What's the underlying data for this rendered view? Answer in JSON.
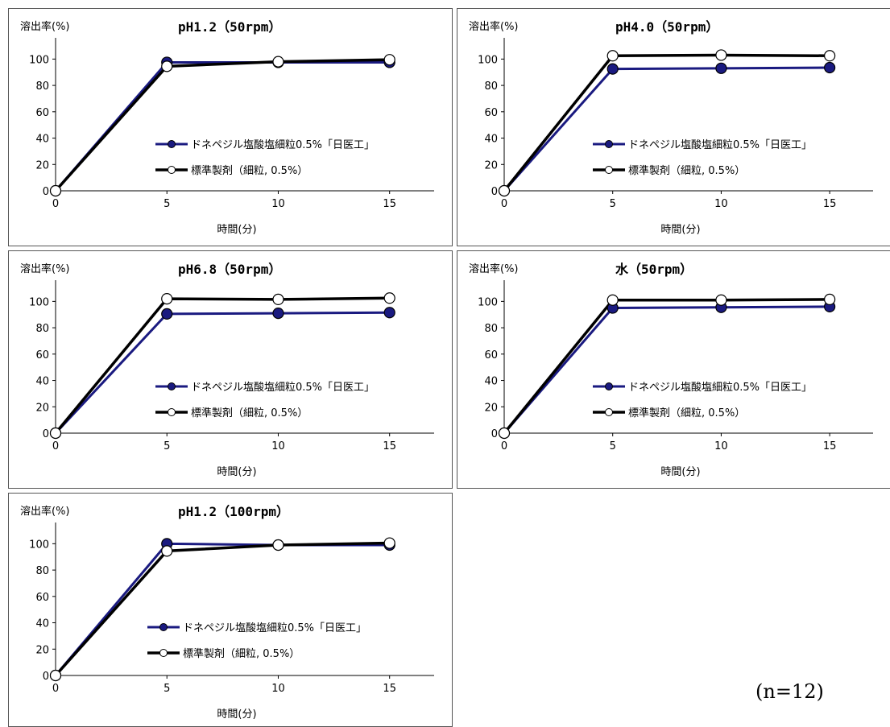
{
  "colors": {
    "test": "#1a1a80",
    "reference": "#000000"
  },
  "legend": {
    "test": "ドネペジル塩酸塩細粒0.5%「日医工」",
    "reference": "標準製剤（細粒, 0.5%）"
  },
  "note": "(n=12)",
  "chart_data": [
    {
      "type": "line",
      "title": "pH1.2（50rpm）",
      "xlabel": "時間(分)",
      "ylabel": "溶出率(%)",
      "x": [
        0,
        5,
        10,
        15
      ],
      "xlim": [
        0,
        17
      ],
      "ylim": [
        0,
        110
      ],
      "xticks": [
        "0",
        "5",
        "10",
        "15"
      ],
      "yticks": [
        "0",
        "20",
        "40",
        "60",
        "80",
        "100"
      ],
      "legend_position": "lower-right",
      "series": [
        {
          "name": "ドネペジル塩酸塩細粒0.5%「日医工」",
          "values": [
            0,
            97.5,
            97.5,
            97.5
          ]
        },
        {
          "name": "標準製剤（細粒, 0.5%）",
          "values": [
            0,
            94.5,
            98,
            99.5
          ]
        }
      ]
    },
    {
      "type": "line",
      "title": "pH4.0（50rpm）",
      "xlabel": "時間(分)",
      "ylabel": "溶出率(%)",
      "x": [
        0,
        5,
        10,
        15
      ],
      "xlim": [
        0,
        17
      ],
      "ylim": [
        0,
        110
      ],
      "xticks": [
        "0",
        "5",
        "10",
        "15"
      ],
      "yticks": [
        "0",
        "20",
        "40",
        "60",
        "80",
        "100"
      ],
      "legend_position": "lower-right",
      "series": [
        {
          "name": "ドネペジル塩酸塩細粒0.5%「日医工」",
          "values": [
            0,
            92.5,
            93,
            93.5
          ]
        },
        {
          "name": "標準製剤（細粒, 0.5%）",
          "values": [
            0,
            102.5,
            103,
            102.5
          ]
        }
      ]
    },
    {
      "type": "line",
      "title": "pH6.8（50rpm）",
      "xlabel": "時間(分)",
      "ylabel": "溶出率(%)",
      "x": [
        0,
        5,
        10,
        15
      ],
      "xlim": [
        0,
        17
      ],
      "ylim": [
        0,
        110
      ],
      "xticks": [
        "0",
        "5",
        "10",
        "15"
      ],
      "yticks": [
        "0",
        "20",
        "40",
        "60",
        "80",
        "100"
      ],
      "legend_position": "lower-right",
      "series": [
        {
          "name": "ドネペジル塩酸塩細粒0.5%「日医工」",
          "values": [
            0,
            90.5,
            91,
            91.5
          ]
        },
        {
          "name": "標準製剤（細粒, 0.5%）",
          "values": [
            0,
            102,
            101.5,
            102.5
          ]
        }
      ]
    },
    {
      "type": "line",
      "title": "水（50rpm）",
      "xlabel": "時間(分)",
      "ylabel": "溶出率(%)",
      "x": [
        0,
        5,
        10,
        15
      ],
      "xlim": [
        0,
        17
      ],
      "ylim": [
        0,
        110
      ],
      "xticks": [
        "0",
        "5",
        "10",
        "15"
      ],
      "yticks": [
        "0",
        "20",
        "40",
        "60",
        "80",
        "100"
      ],
      "legend_position": "lower-right",
      "series": [
        {
          "name": "ドネペジル塩酸塩細粒0.5%「日医工」",
          "values": [
            0,
            95,
            95.5,
            96
          ]
        },
        {
          "name": "標準製剤（細粒, 0.5%）",
          "values": [
            0,
            101,
            101,
            101.5
          ]
        }
      ]
    },
    {
      "type": "line",
      "title": "pH1.2（100rpm）",
      "xlabel": "時間(分)",
      "ylabel": "溶出率(%)",
      "x": [
        0,
        5,
        10,
        15
      ],
      "xlim": [
        0,
        17
      ],
      "ylim": [
        0,
        110
      ],
      "xticks": [
        "0",
        "5",
        "10",
        "15"
      ],
      "yticks": [
        "0",
        "20",
        "40",
        "60",
        "80",
        "100"
      ],
      "legend_position": "lower-right",
      "series": [
        {
          "name": "ドネペジル塩酸塩細粒0.5%「日医工」",
          "values": [
            0,
            100,
            99,
            99
          ]
        },
        {
          "name": "標準製剤（細粒, 0.5%）",
          "values": [
            0,
            94.5,
            99,
            100.5
          ]
        }
      ]
    }
  ]
}
